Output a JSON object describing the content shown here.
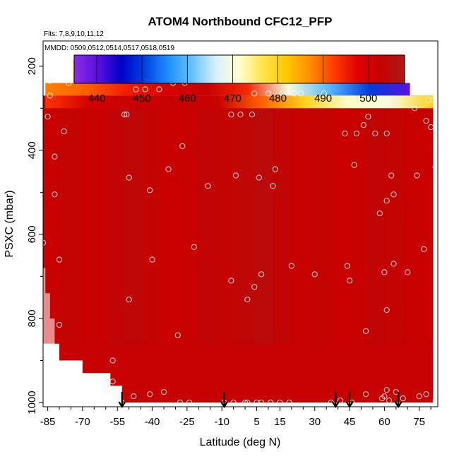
{
  "chart_data": {
    "type": "heatmap",
    "title": "ATOM4 Northbound CFC12_PFP",
    "subtitle_flights": "Flts: 7,8,9,10,11,12",
    "subtitle_dates": "MMDD: 0509,0512,0514,0517,0518,0519",
    "xlabel": "Latitude (deg N)",
    "ylabel": "PSXC (mbar)",
    "xlim": [
      -87,
      83
    ],
    "ylim": [
      1010,
      140
    ],
    "y_reversed": true,
    "x_ticks": [
      -85,
      -70,
      -55,
      -40,
      -25,
      -10,
      5,
      15,
      30,
      45,
      60,
      75
    ],
    "x_tick_labels": [
      "-85",
      "-70",
      "-55",
      "-40",
      "-25",
      "-10",
      "5",
      "15",
      "30",
      "45",
      "60",
      "75"
    ],
    "y_ticks": [
      200,
      400,
      600,
      800,
      1000
    ],
    "y_tick_labels": [
      "200",
      "400",
      "600",
      "800",
      "1000"
    ],
    "colorbar": {
      "min": 435,
      "max": 508,
      "ticks": [
        440,
        450,
        460,
        470,
        480,
        490,
        500
      ],
      "tick_labels": [
        "440",
        "450",
        "460",
        "470",
        "480",
        "490",
        "500"
      ],
      "colors": [
        "#8a2be2",
        "#5a10e0",
        "#0000c8",
        "#0044e0",
        "#1e90ff",
        "#66c2ff",
        "#d8f0ff",
        "#ffffd0",
        "#ffe44a",
        "#ffc800",
        "#ff8c00",
        "#ff3c00",
        "#e00000",
        "#c80000",
        "#aa1a1a"
      ]
    },
    "field_summary": {
      "background_value": 503,
      "upper_layer": [
        {
          "lat_range": [
            -74,
            55
          ],
          "p_range": [
            185,
            240
          ],
          "values": [
            484,
            485,
            486,
            487,
            489,
            490,
            478,
            470,
            460,
            450
          ]
        },
        {
          "lat_range": [
            -86,
            71
          ],
          "p_range": [
            240,
            270
          ],
          "values": [
            488,
            490,
            495,
            500,
            503,
            494,
            470,
            460,
            450,
            440
          ]
        },
        {
          "lat_range": [
            -86,
            81
          ],
          "p_range": [
            270,
            300
          ],
          "values": [
            493,
            500,
            503,
            503,
            503,
            490,
            480,
            472,
            470,
            480
          ]
        }
      ]
    },
    "sample_points": [
      [
        -87,
        620
      ],
      [
        -85,
        320
      ],
      [
        -84,
        270
      ],
      [
        -84,
        235
      ],
      [
        -82,
        415
      ],
      [
        -82,
        505
      ],
      [
        -80,
        660
      ],
      [
        -80,
        815
      ],
      [
        -78,
        355
      ],
      [
        -76,
        240
      ],
      [
        -74,
        205
      ],
      [
        -57,
        900
      ],
      [
        -57,
        950
      ],
      [
        -54,
        990
      ],
      [
        -53,
        1000
      ],
      [
        -52,
        315
      ],
      [
        -51,
        315
      ],
      [
        -50,
        465
      ],
      [
        -50,
        755
      ],
      [
        -48,
        985
      ],
      [
        -47,
        255
      ],
      [
        -43,
        255
      ],
      [
        -41,
        980
      ],
      [
        -41,
        495
      ],
      [
        -40,
        660
      ],
      [
        -37,
        255
      ],
      [
        -35,
        975
      ],
      [
        -33,
        445
      ],
      [
        -31,
        240
      ],
      [
        -29,
        840
      ],
      [
        -28,
        1000
      ],
      [
        -27,
        390
      ],
      [
        -26,
        240
      ],
      [
        -24,
        1000
      ],
      [
        -22,
        630
      ],
      [
        -19,
        205
      ],
      [
        -16,
        485
      ],
      [
        -9,
        1000
      ],
      [
        -6,
        315
      ],
      [
        -6,
        710
      ],
      [
        -5,
        1000
      ],
      [
        -4,
        460
      ],
      [
        -2,
        315
      ],
      [
        0,
        1000
      ],
      [
        1,
        755
      ],
      [
        1,
        1000
      ],
      [
        3,
        315
      ],
      [
        4,
        265
      ],
      [
        4,
        725
      ],
      [
        5,
        1000
      ],
      [
        6,
        465
      ],
      [
        7,
        1000
      ],
      [
        7,
        695
      ],
      [
        10,
        265
      ],
      [
        11,
        1000
      ],
      [
        12,
        485
      ],
      [
        13,
        445
      ],
      [
        15,
        1000
      ],
      [
        16,
        265
      ],
      [
        19,
        1000
      ],
      [
        20,
        675
      ],
      [
        21,
        265
      ],
      [
        24,
        265
      ],
      [
        30,
        695
      ],
      [
        34,
        265
      ],
      [
        37,
        1000
      ],
      [
        41,
        995
      ],
      [
        43,
        360
      ],
      [
        44,
        675
      ],
      [
        45,
        710
      ],
      [
        46,
        1000
      ],
      [
        47,
        205
      ],
      [
        47,
        435
      ],
      [
        48,
        360
      ],
      [
        51,
        340
      ],
      [
        52,
        980
      ],
      [
        52,
        830
      ],
      [
        53,
        320
      ],
      [
        56,
        360
      ],
      [
        58,
        550
      ],
      [
        59,
        990
      ],
      [
        60,
        690
      ],
      [
        60,
        985
      ],
      [
        61,
        360
      ],
      [
        61,
        520
      ],
      [
        61,
        780
      ],
      [
        61,
        970
      ],
      [
        62,
        995
      ],
      [
        63,
        460
      ],
      [
        64,
        505
      ],
      [
        64,
        670
      ],
      [
        65,
        975
      ],
      [
        66,
        230
      ],
      [
        67,
        230
      ],
      [
        68,
        990
      ],
      [
        70,
        690
      ],
      [
        71,
        230
      ],
      [
        73,
        300
      ],
      [
        74,
        460
      ],
      [
        75,
        985
      ],
      [
        77,
        635
      ],
      [
        78,
        330
      ],
      [
        78,
        980
      ],
      [
        79,
        280
      ],
      [
        80,
        345
      ],
      [
        81,
        280
      ],
      [
        82,
        440
      ],
      [
        82,
        995
      ]
    ],
    "markers_arrows_lat": [
      -53,
      -9,
      39,
      45,
      66
    ]
  }
}
